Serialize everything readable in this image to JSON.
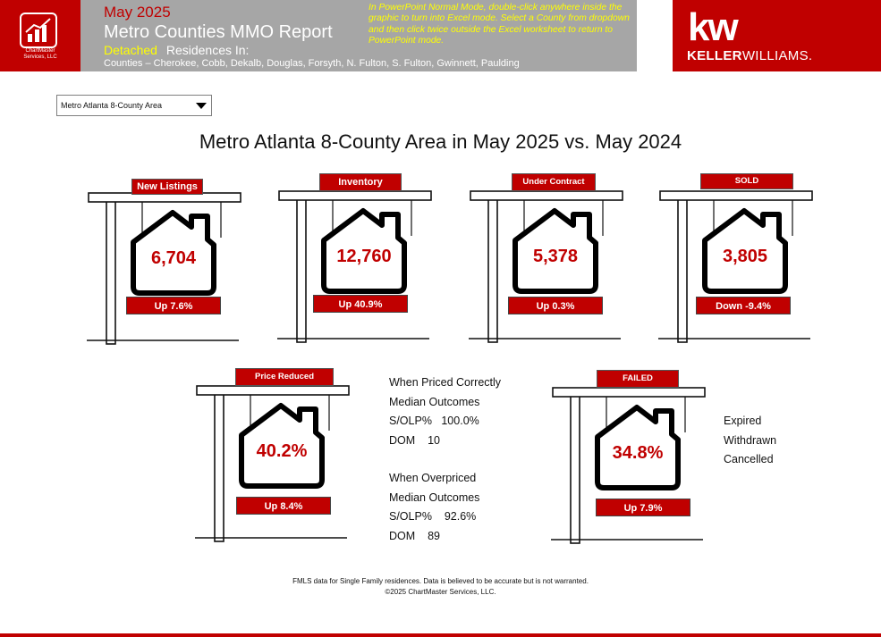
{
  "header": {
    "brand_line1": "ChartMaster",
    "brand_line2": "Services, LLC",
    "month": "May 2025",
    "title": "Metro Counties MMO Report",
    "property_type": "Detached",
    "residences_label": "Residences In:",
    "counties": "Counties – Cherokee, Cobb, Dekalb, Douglas, Forsyth, N. Fulton, S. Fulton, Gwinnett, Paulding",
    "note": "In PowerPoint Normal Mode, double-click anywhere inside the graphic to turn into Excel mode. Select a County from dropdown and then click twice outside the Excel worksheet to return to PowerPoint mode.",
    "logo_mark": "kw",
    "logo_name_bold": "KELLER",
    "logo_name_rest": "WILLIAMS."
  },
  "dropdown": {
    "selected": "Metro Atlanta 8-County Area"
  },
  "main_title": "Metro Atlanta 8-County Area in May 2025 vs. May 2024",
  "signs": [
    {
      "label": "New Listings",
      "value": "6,704",
      "change": "Up 7.6%"
    },
    {
      "label": "Inventory",
      "value": "12,760",
      "change": "Up 40.9%"
    },
    {
      "label": "Under Contract",
      "value": "5,378",
      "change": "Up 0.3%"
    },
    {
      "label": "SOLD",
      "value": "3,805",
      "change": "Down -9.4%"
    },
    {
      "label": "Price Reduced",
      "value": "40.2%",
      "change": "Up 8.4%"
    },
    {
      "label": "FAILED",
      "value": "34.8%",
      "change": "Up 7.9%"
    }
  ],
  "priced_correctly": {
    "heading": "When Priced Correctly",
    "subheading": "Median Outcomes",
    "solp_label": "S/OLP%",
    "solp_value": "100.0%",
    "dom_label": "DOM",
    "dom_value": "10"
  },
  "overpriced": {
    "heading": "When Overpriced",
    "subheading": "Median Outcomes",
    "solp_label": "S/OLP%",
    "solp_value": "92.6%",
    "dom_label": "DOM",
    "dom_value": "89"
  },
  "failed_breakdown": [
    "Expired",
    "Withdrawn",
    "Cancelled"
  ],
  "footer": {
    "line1": "FMLS data for Single Family residences.  Data is believed to be accurate but is not warranted.",
    "line2": "©2025 ChartMaster Services, LLC."
  },
  "colors": {
    "brand_red": "#c00000",
    "header_gray": "#a6a6a6",
    "highlight_yellow": "#ffff00"
  }
}
